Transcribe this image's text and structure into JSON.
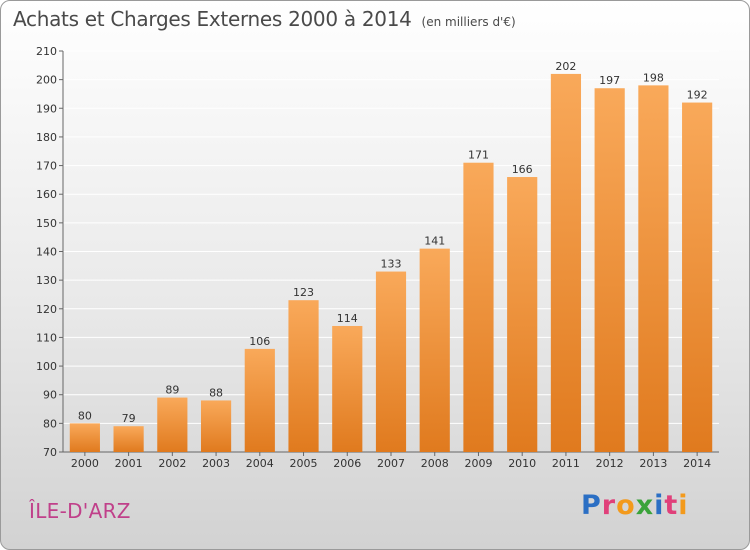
{
  "header": {
    "title": "Achats et Charges Externes 2000 à 2014",
    "unit": "(en milliers d'€)"
  },
  "footer": {
    "commune": "ÎLE-D'ARZ",
    "logo": {
      "letters": [
        "P",
        "r",
        "o",
        "x",
        "i",
        "t",
        "i"
      ],
      "colors": [
        "#2b6fc4",
        "#e0407a",
        "#f39a1c",
        "#3aa33a",
        "#2b6fc4",
        "#e0407a",
        "#f39a1c"
      ]
    }
  },
  "chart_data": {
    "type": "bar",
    "title": "Achats et Charges Externes 2000 à 2014",
    "categories": [
      "2000",
      "2001",
      "2002",
      "2003",
      "2004",
      "2005",
      "2006",
      "2007",
      "2008",
      "2009",
      "2010",
      "2011",
      "2012",
      "2013",
      "2014"
    ],
    "values": [
      80,
      79,
      89,
      88,
      106,
      123,
      114,
      133,
      141,
      171,
      166,
      202,
      197,
      198,
      192
    ],
    "ylim": [
      70,
      210
    ],
    "yticks": [
      70,
      80,
      90,
      100,
      110,
      120,
      130,
      140,
      150,
      160,
      170,
      180,
      190,
      200,
      210
    ],
    "grid": true,
    "colors": {
      "bar_light": "#f9a95a",
      "bar_dark": "#e07a1e",
      "grid": "#ffffff"
    }
  }
}
